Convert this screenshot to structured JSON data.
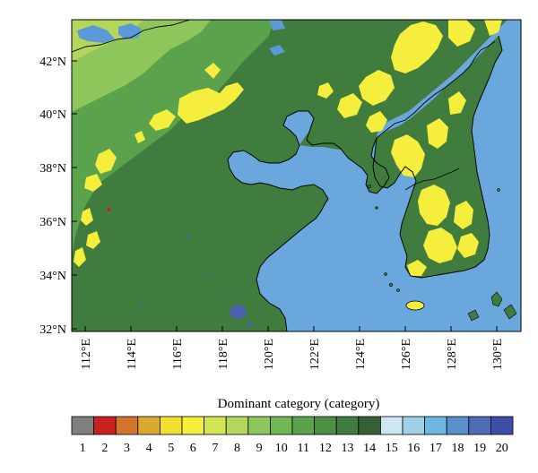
{
  "map": {
    "lat_labels": [
      "42°N",
      "40°N",
      "38°N",
      "36°N",
      "34°N",
      "32°N"
    ],
    "lon_labels": [
      "112°E",
      "114°E",
      "116°E",
      "118°E",
      "120°E",
      "122°E",
      "124°E",
      "126°E",
      "128°E",
      "130°E"
    ],
    "extent": {
      "lon": [
        111.3,
        130.9
      ],
      "lat": [
        31.8,
        43.5
      ]
    }
  },
  "colorbar": {
    "title": "Dominant category (category)",
    "categories": [
      "1",
      "2",
      "3",
      "4",
      "5",
      "6",
      "7",
      "8",
      "9",
      "10",
      "11",
      "12",
      "13",
      "14",
      "15",
      "16",
      "17",
      "18",
      "19",
      "20"
    ],
    "colors": [
      "#7f7f7f",
      "#c8201e",
      "#d2742c",
      "#d9a82f",
      "#f2e030",
      "#f6ee3d",
      "#d2e356",
      "#b4d65a",
      "#8fc65c",
      "#70b653",
      "#5aa24c",
      "#4c8f45",
      "#3f7c3e",
      "#355f35",
      "#cfe6f0",
      "#9fd1e6",
      "#6db7e1",
      "#5a8fcb",
      "#4e6cb6",
      "#3f4ea7"
    ]
  },
  "colors": {
    "ocean": "#6aa7dc",
    "land_dark": "#3f7c3e",
    "land_mid": "#5aa24c",
    "land_light": "#8fc65c",
    "land_pale": "#b4d65a",
    "yellow": "#f6ee3d",
    "lake": "#5b9ad6",
    "reservoir": "#4a5fb3"
  }
}
